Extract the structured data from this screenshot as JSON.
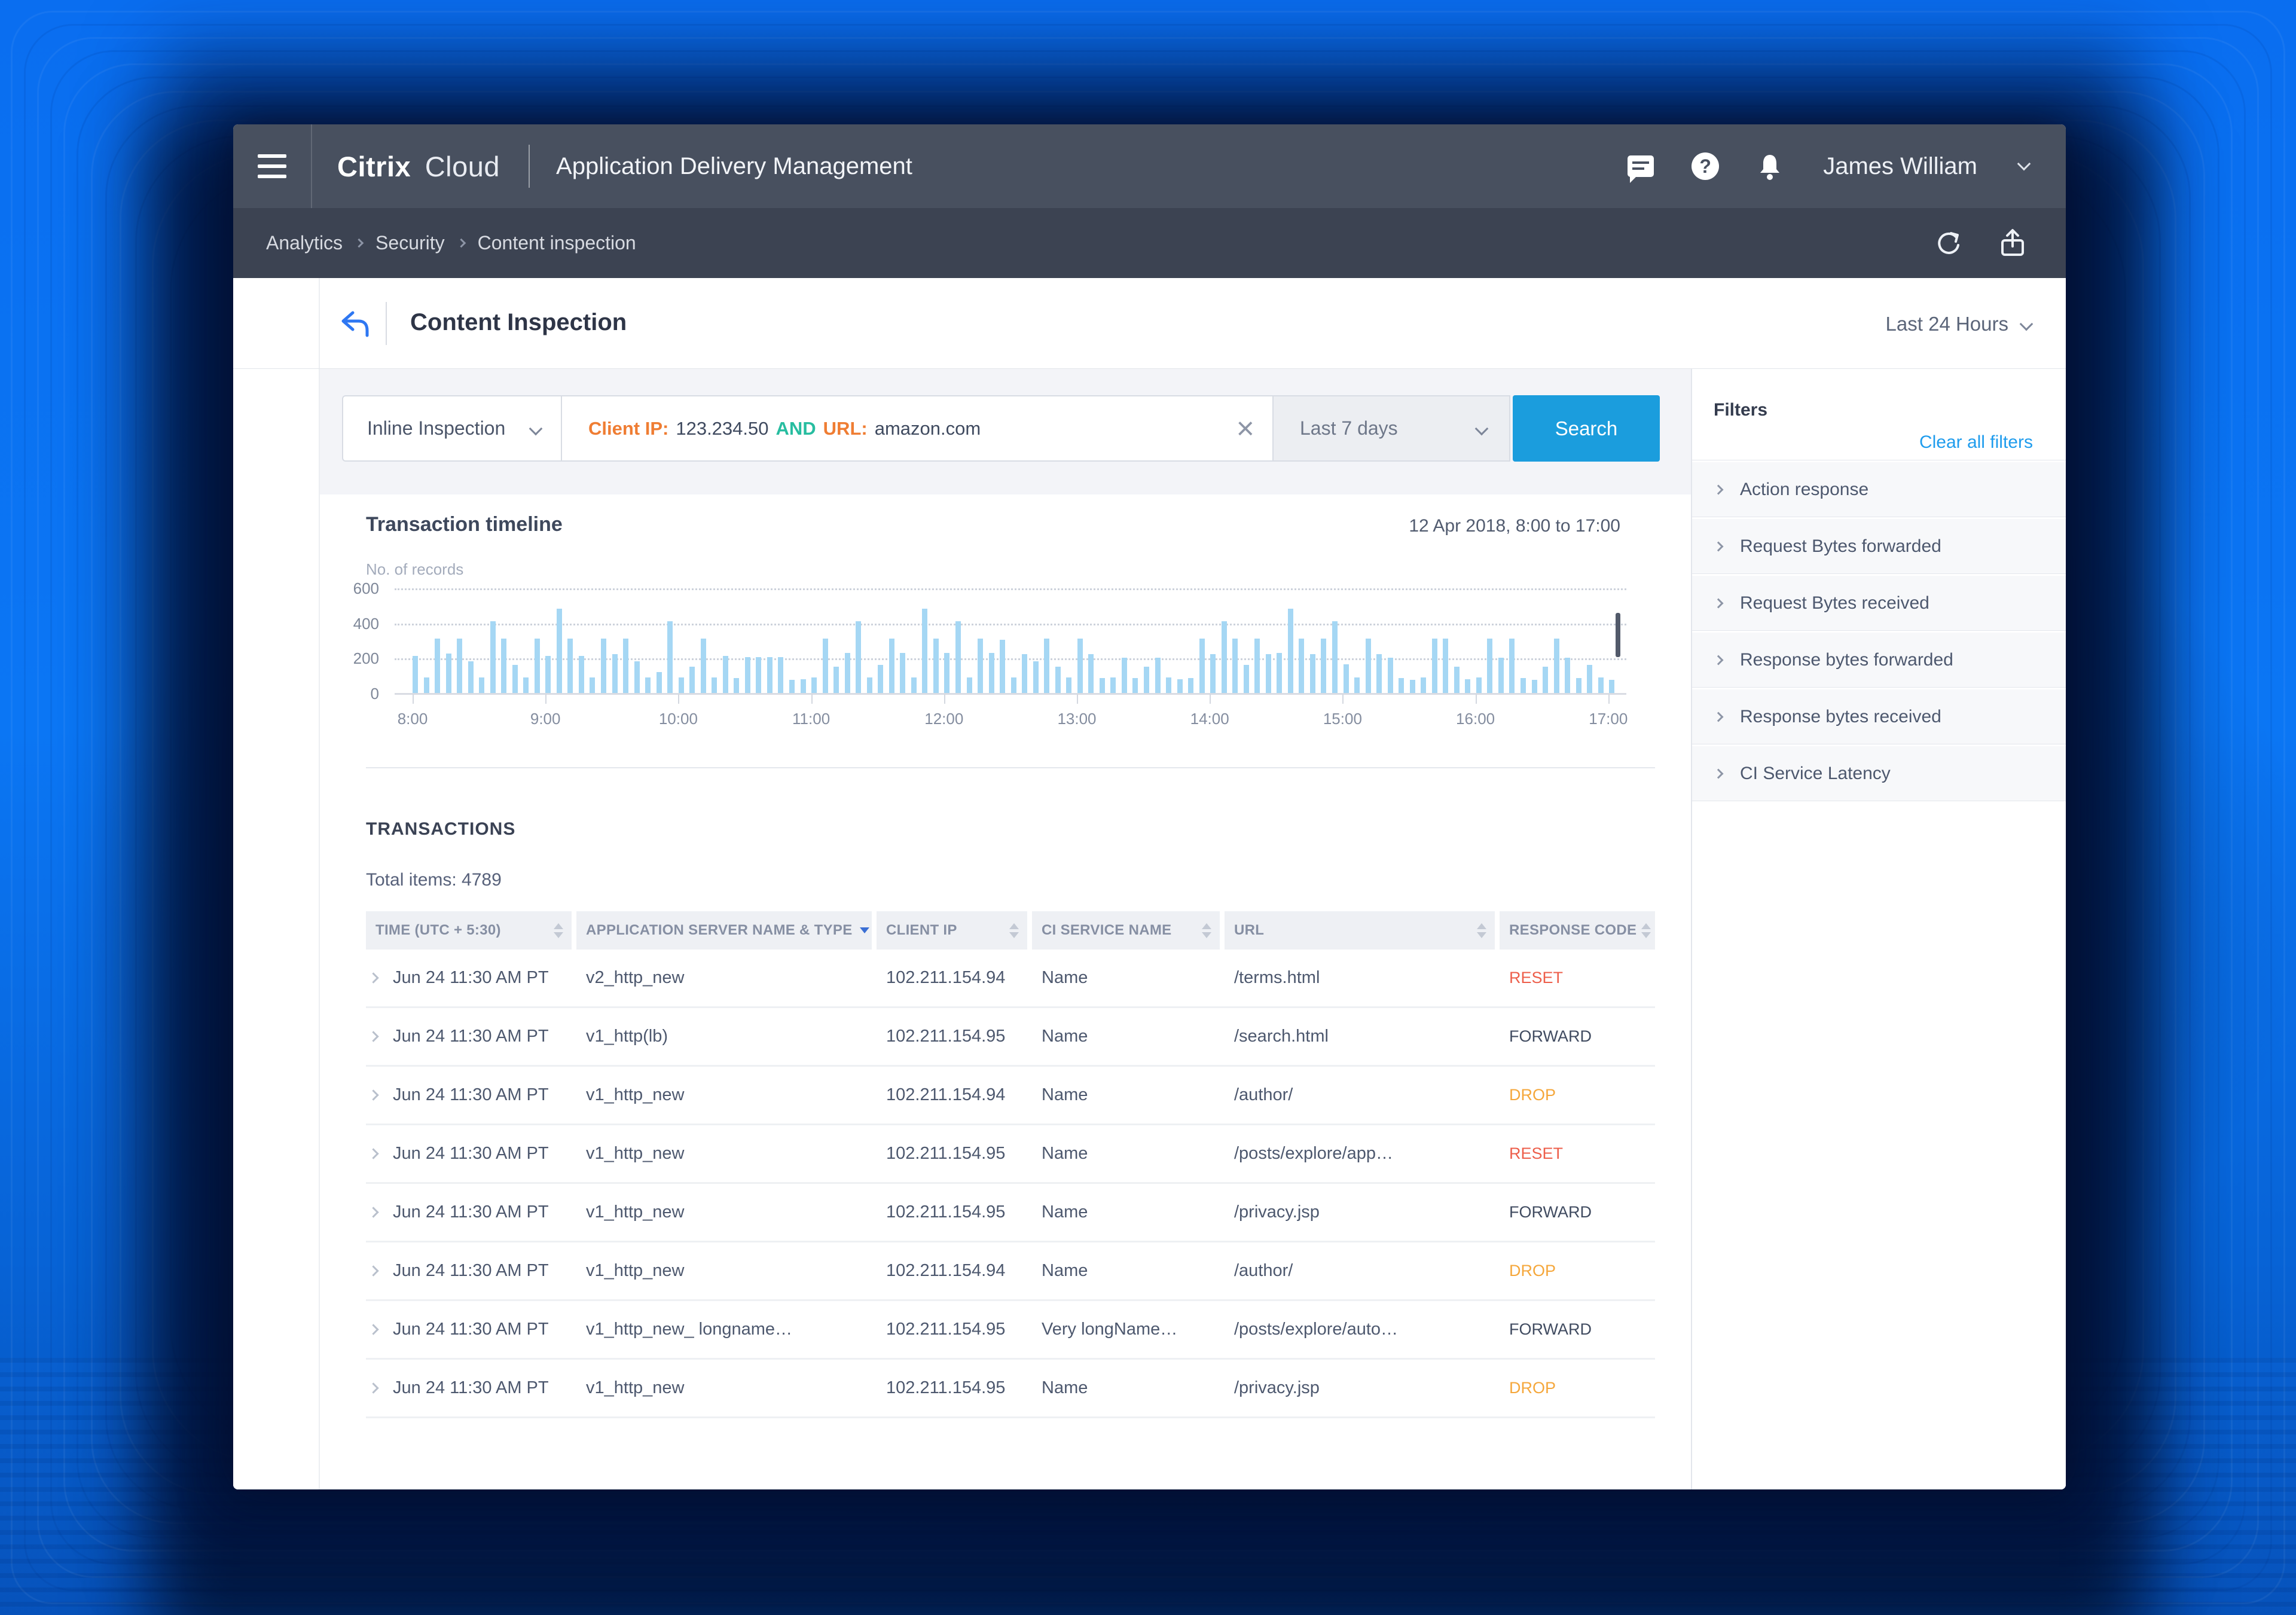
{
  "header": {
    "brand_primary": "Citrix",
    "brand_secondary": "Cloud",
    "app_title": "Application Delivery Management",
    "user_name": "James William"
  },
  "breadcrumb": {
    "items": [
      "Analytics",
      "Security",
      "Content inspection"
    ]
  },
  "page": {
    "title": "Content Inspection",
    "time_range_label": "Last 24 Hours"
  },
  "search": {
    "scope": "Inline Inspection",
    "query": {
      "field1": "Client IP:",
      "value1": "123.234.50",
      "op": "AND",
      "field2": "URL:",
      "value2": "amazon.com"
    },
    "clear_label": "×",
    "duration": "Last 7 days",
    "submit_label": "Search"
  },
  "chart_data": {
    "type": "bar",
    "title": "Transaction timeline",
    "date_range": "12 Apr 2018, 8:00 to 17:00",
    "ylabel": "No. of records",
    "ylim": [
      0,
      600
    ],
    "yticks": [
      600,
      400,
      200,
      0
    ],
    "x_tick_labels": [
      "8:00",
      "9:00",
      "10:00",
      "11:00",
      "12:00",
      "13:00",
      "14:00",
      "15:00",
      "16:00",
      "17:00"
    ],
    "bin_minutes": 5,
    "grid": "horizontal-dotted",
    "legend": "none",
    "bar_color": "#a5d7f4",
    "values": [
      210,
      90,
      310,
      225,
      310,
      180,
      90,
      410,
      310,
      160,
      90,
      310,
      210,
      480,
      310,
      210,
      90,
      310,
      220,
      310,
      180,
      90,
      120,
      410,
      90,
      150,
      310,
      90,
      210,
      85,
      205,
      205,
      205,
      205,
      75,
      80,
      90,
      310,
      150,
      230,
      410,
      90,
      160,
      310,
      230,
      90,
      480,
      310,
      230,
      410,
      90,
      310,
      230,
      305,
      90,
      220,
      180,
      310,
      150,
      90,
      310,
      220,
      85,
      90,
      200,
      85,
      150,
      200,
      90,
      80,
      85,
      310,
      220,
      410,
      310,
      160,
      310,
      220,
      230,
      480,
      310,
      220,
      310,
      410,
      165,
      90,
      310,
      220,
      200,
      85,
      75,
      90,
      310,
      310,
      150,
      80,
      90,
      310,
      200,
      310,
      85,
      75,
      150,
      310,
      200,
      85,
      160,
      90,
      75
    ]
  },
  "filters": {
    "title": "Filters",
    "clear_all": "Clear all filters",
    "items": [
      "Action response",
      "Request Bytes forwarded",
      "Request Bytes received",
      "Response bytes forwarded",
      "Response bytes received",
      "CI Service Latency"
    ]
  },
  "transactions": {
    "section_title": "TRANSACTIONS",
    "total": "Total items: 4789",
    "columns": [
      {
        "label": "TIME (UTC + 5:30)",
        "sorted": false
      },
      {
        "label": "APPLICATION SERVER NAME & TYPE",
        "sorted": true
      },
      {
        "label": "CLIENT IP",
        "sorted": false
      },
      {
        "label": "CI SERVICE NAME",
        "sorted": false
      },
      {
        "label": "URL",
        "sorted": false
      },
      {
        "label": "RESPONSE CODE",
        "sorted": false
      }
    ],
    "code_colors": {
      "RESET": "#ed5e4a",
      "FORWARD": "#404b60",
      "DROP": "#f5a73b"
    },
    "rows": [
      {
        "time": "Jun 24 11:30 AM PT",
        "server": "v2_http_new",
        "client_ip": "102.211.154.94",
        "service": "Name",
        "url": "/terms.html",
        "code": "RESET"
      },
      {
        "time": "Jun 24 11:30 AM PT",
        "server": "v1_http(lb)",
        "client_ip": "102.211.154.95",
        "service": "Name",
        "url": "/search.html",
        "code": "FORWARD"
      },
      {
        "time": "Jun 24 11:30 AM PT",
        "server": "v1_http_new",
        "client_ip": "102.211.154.94",
        "service": "Name",
        "url": "/author/",
        "code": "DROP"
      },
      {
        "time": "Jun 24 11:30 AM PT",
        "server": "v1_http_new",
        "client_ip": "102.211.154.95",
        "service": "Name",
        "url": "/posts/explore/app…",
        "code": "RESET"
      },
      {
        "time": "Jun 24 11:30 AM PT",
        "server": "v1_http_new",
        "client_ip": "102.211.154.95",
        "service": "Name",
        "url": "/privacy.jsp",
        "code": "FORWARD"
      },
      {
        "time": "Jun 24 11:30 AM PT",
        "server": "v1_http_new",
        "client_ip": "102.211.154.94",
        "service": "Name",
        "url": "/author/",
        "code": "DROP"
      },
      {
        "time": "Jun 24 11:30 AM PT",
        "server": "v1_http_new_ longname…",
        "client_ip": "102.211.154.95",
        "service": "Very longName…",
        "url": "/posts/explore/auto…",
        "code": "FORWARD"
      },
      {
        "time": "Jun 24 11:30 AM PT",
        "server": "v1_http_new",
        "client_ip": "102.211.154.95",
        "service": "Name",
        "url": "/privacy.jsp",
        "code": "DROP"
      }
    ]
  }
}
